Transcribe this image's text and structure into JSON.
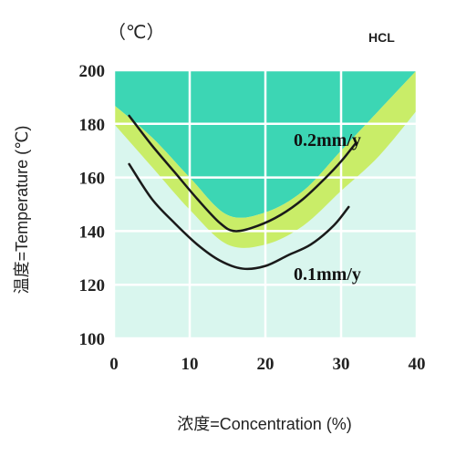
{
  "chart_data": {
    "type": "line",
    "title": "HCL",
    "unit_label": "（℃）",
    "xlabel": "浓度=Concentration (%)",
    "ylabel": "温度=Temperature (℃)",
    "xlim": [
      0,
      40
    ],
    "ylim": [
      100,
      200
    ],
    "x_ticks": [
      "0",
      "10",
      "20",
      "30",
      "40"
    ],
    "y_ticks": [
      "100",
      "120",
      "140",
      "160",
      "180",
      "200"
    ],
    "grid": true,
    "colors": {
      "zone_high": "#3cd6b4",
      "zone_band": "#c9ed68",
      "zone_low": "#d9f6ee",
      "grid": "#ffffff",
      "line": "#1a1a1a"
    },
    "series": [
      {
        "name": "0.2mm/y",
        "x": [
          2,
          5,
          8,
          11,
          14,
          16,
          19,
          22,
          25,
          28,
          30,
          32
        ],
        "y": [
          183,
          172,
          162,
          152,
          143,
          140,
          142,
          146,
          152,
          160,
          166,
          173
        ]
      },
      {
        "name": "0.1mm/y",
        "x": [
          2,
          5,
          8,
          11,
          14,
          17,
          20,
          23,
          26,
          29,
          31
        ],
        "y": [
          165,
          152,
          143,
          135,
          129,
          126,
          127,
          131,
          135,
          142,
          149
        ]
      }
    ],
    "band_upper": {
      "x": [
        0,
        5,
        10,
        15,
        20,
        25,
        30,
        35,
        40
      ],
      "y": [
        187,
        175,
        160,
        146,
        147,
        155,
        170,
        185,
        200
      ]
    },
    "band_lower": {
      "x": [
        0,
        5,
        10,
        15,
        20,
        25,
        30,
        35,
        40
      ],
      "y": [
        180,
        164,
        148,
        135,
        135,
        142,
        155,
        168,
        185
      ]
    }
  }
}
